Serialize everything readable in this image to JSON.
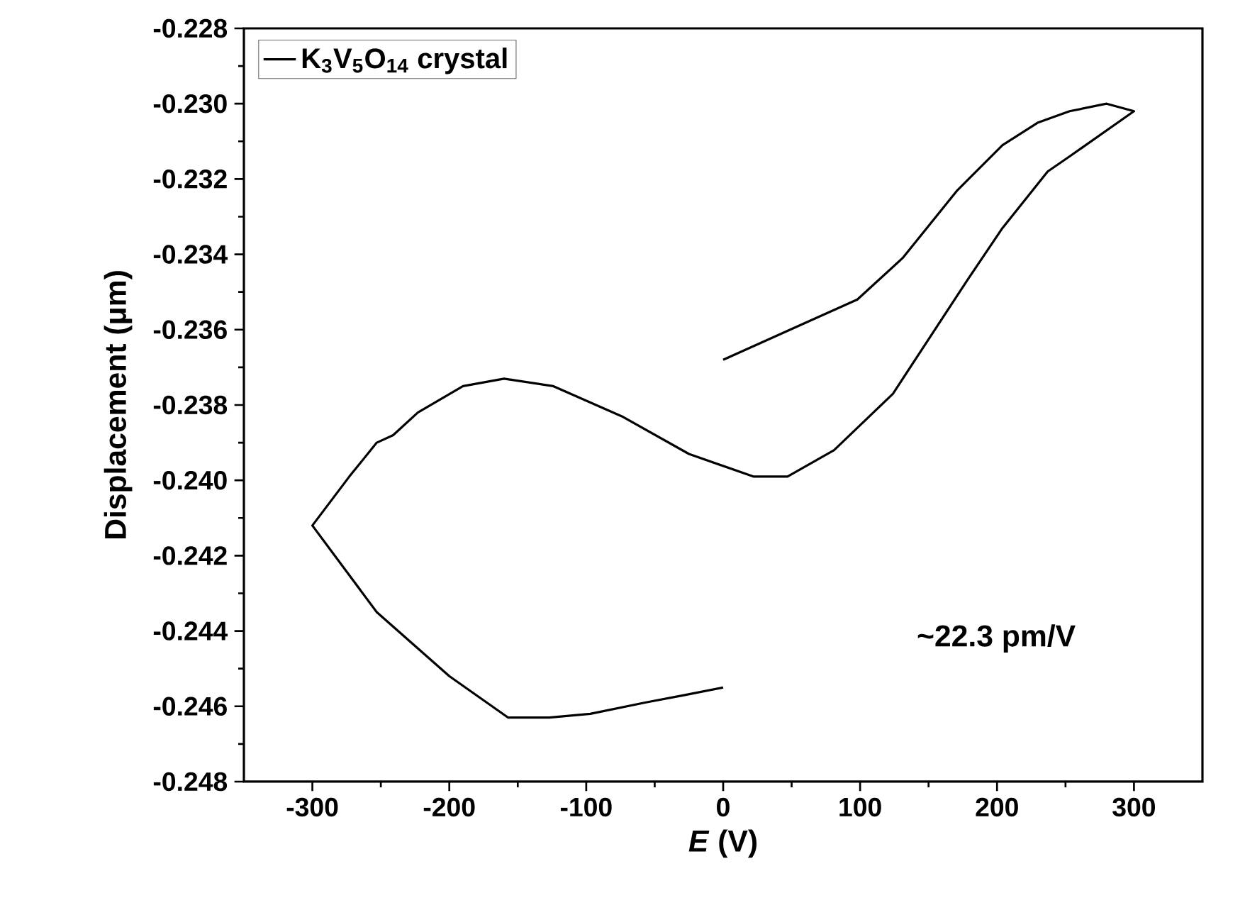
{
  "chart_data": {
    "type": "line",
    "xlabel": "*E* (V)",
    "ylabel": "Displacement (μm)",
    "xlim": [
      -350,
      350
    ],
    "xticks": [
      -300,
      -200,
      -100,
      0,
      100,
      200,
      300
    ],
    "ylim": [
      -0.248,
      -0.228
    ],
    "yticks": [
      -0.248,
      -0.246,
      -0.244,
      -0.242,
      {
        "value": -0.24,
        "label": "-0.240"
      },
      -0.238,
      -0.236,
      -0.234,
      -0.232,
      {
        "value": -0.23,
        "label": "-0.230"
      },
      -0.228
    ],
    "legend": "top left",
    "marker": "none",
    "line_style": "solid",
    "grid": false,
    "annotations": [
      "~22.3 pm/V"
    ],
    "series": [
      {
        "name": "K$_{3}$V$_{5}$O$_{14}$ crystal",
        "color": "#000000",
        "x": [
          0,
          -28,
          -57,
          -97,
          -127,
          -157,
          -200,
          -253,
          -300,
          -273,
          -253,
          -241,
          -223,
          -190,
          -160,
          -124,
          -74,
          -25,
          22,
          47,
          81,
          124,
          178,
          204,
          237,
          253,
          300,
          280,
          253,
          230,
          204,
          171,
          131,
          98,
          55,
          0
        ],
        "values": [
          -0.2455,
          -0.2457,
          -0.2459,
          -0.2462,
          -0.2463,
          -0.2463,
          -0.2452,
          -0.2435,
          -0.2412,
          -0.2399,
          -0.239,
          -0.2388,
          -0.2382,
          -0.2375,
          -0.2373,
          -0.2375,
          -0.2383,
          -0.2393,
          -0.2399,
          -0.2399,
          -0.2392,
          -0.2377,
          -0.2347,
          -0.2333,
          -0.2318,
          -0.2314,
          -0.2302,
          -0.23,
          -0.2302,
          -0.2305,
          -0.2311,
          -0.2323,
          -0.2341,
          -0.2352,
          -0.2359,
          -0.2368
        ]
      }
    ]
  }
}
